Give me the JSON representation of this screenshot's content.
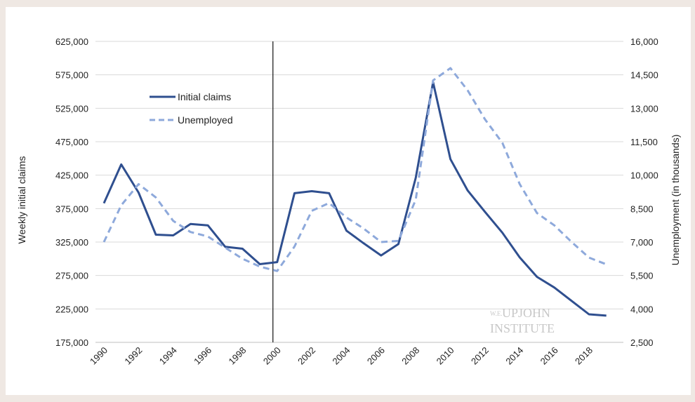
{
  "chart_data": {
    "type": "line",
    "x": [
      1990,
      1991,
      1992,
      1993,
      1994,
      1995,
      1996,
      1997,
      1998,
      1999,
      2000,
      2001,
      2002,
      2003,
      2004,
      2005,
      2006,
      2007,
      2008,
      2009,
      2010,
      2011,
      2012,
      2013,
      2014,
      2015,
      2016,
      2017,
      2018,
      2019
    ],
    "x_tick_labels": [
      "1990",
      "1992",
      "1994",
      "1996",
      "1998",
      "2000",
      "2002",
      "2004",
      "2006",
      "2008",
      "2010",
      "2012",
      "2014",
      "2016",
      "2018"
    ],
    "ylabel_left": "Weekly initial claims",
    "ylabel_right": "Unemployment (in thousands)",
    "ylim_left": [
      175000,
      625000
    ],
    "ylim_right": [
      2500,
      16000
    ],
    "left_tick_labels": [
      "175,000",
      "225,000",
      "275,000",
      "325,000",
      "375,000",
      "425,000",
      "475,000",
      "525,000",
      "575,000",
      "625,000"
    ],
    "right_tick_labels": [
      "2,500",
      "4,000",
      "5,500",
      "7,000",
      "8,500",
      "10,000",
      "11,500",
      "13,000",
      "14,500",
      "16,000"
    ],
    "grid": true,
    "legend_position": "top-left",
    "vertical_marker_x": 2000,
    "series": [
      {
        "name": "Initial claims",
        "axis": "left",
        "style": "solid",
        "color": "#2f4f8f",
        "values": [
          383000,
          441000,
          399000,
          336000,
          335000,
          352000,
          350000,
          318000,
          315000,
          292000,
          295000,
          398000,
          401000,
          398000,
          342000,
          323000,
          305000,
          322000,
          421000,
          564000,
          449000,
          402000,
          370000,
          339000,
          302000,
          273000,
          257000,
          237000,
          217000,
          215000
        ]
      },
      {
        "name": "Unemployed",
        "axis": "right",
        "style": "dashed",
        "color": "#8ea9db",
        "values": [
          7000,
          8650,
          9600,
          9000,
          7950,
          7450,
          7250,
          6750,
          6250,
          5900,
          5700,
          6800,
          8400,
          8750,
          8100,
          7600,
          7000,
          7050,
          8900,
          14250,
          14800,
          13800,
          12500,
          11450,
          9600,
          8300,
          7750,
          7000,
          6300,
          6000
        ]
      }
    ]
  },
  "watermark": {
    "line1_prefix": "W.E.",
    "line1": "UPJOHN",
    "line2": "INSTITUTE"
  }
}
